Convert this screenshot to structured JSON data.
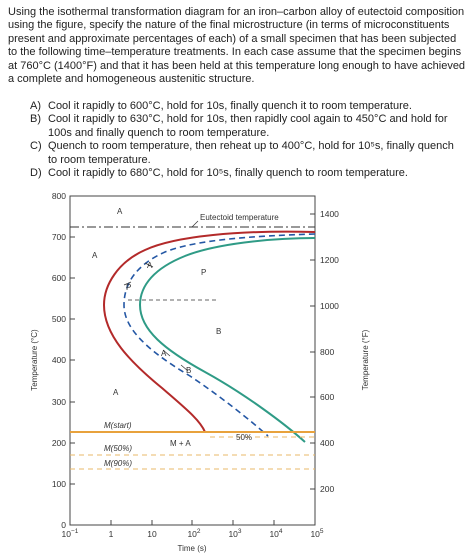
{
  "question": {
    "intro": "Using the isothermal transformation diagram for an iron–carbon alloy of eutectoid composition using the figure, specify the nature of the final microstructure (in terms of microconstituents present and approximate percentages of each) of a small specimen that has been subjected to the following time–temperature treatments. In each case assume that the specimen begins at 760°C (1400°F) and that it has been held at this temperature long enough to have achieved a complete and homogeneous austenitic structure.",
    "options": [
      {
        "letter": "A)",
        "text": "Cool it rapidly to 600°C, hold for 10s, finally quench it to room temperature."
      },
      {
        "letter": "B)",
        "text": "Cool it rapidly to 630°C, hold for 10s, then rapidly cool again to 450°C and hold for 100s and finally quench to room temperature."
      },
      {
        "letter": "C)",
        "text": "Quench to room temperature, then reheat up to 400°C, hold for 10⁵s, finally quench to room temperature."
      },
      {
        "letter": "D)",
        "text": "Cool it rapidly to 680°C, hold for 10⁵s, finally quench to room temperature."
      }
    ]
  },
  "diagram": {
    "left_axis": {
      "title": "Temperature (°C)",
      "ticks": [
        "0",
        "100",
        "200",
        "300",
        "400",
        "500",
        "600",
        "700",
        "800"
      ]
    },
    "right_axis": {
      "title": "Temperature (°F)",
      "ticks": [
        "200",
        "400",
        "600",
        "800",
        "1000",
        "1200",
        "1400"
      ]
    },
    "x_axis": {
      "title": "Time (s)",
      "ticks": [
        "10",
        "1",
        "10",
        "10",
        "10",
        "10",
        "10"
      ],
      "exponents": [
        "−1",
        "",
        "",
        "2",
        "3",
        "4",
        "5"
      ]
    },
    "eutectoid_label": "Eutectoid temperature",
    "region_labels": {
      "a_top": "A",
      "a_left": "A",
      "a_low": "A",
      "p_region": "P",
      "b_region": "B",
      "m_plus_a": "M + A",
      "fifty_pct": "50%",
      "curve_a": "A",
      "curve_p": "P",
      "curve_a2": "A",
      "curve_b": "B"
    },
    "martensite_labels": [
      "M(start)",
      "M(50%)",
      "M(90%)"
    ],
    "colors": {
      "start_curve": "#b32a2a",
      "finish_curve": "#2f9b86",
      "dashed_50": "#2457a4",
      "ms_line": "#e8a23c",
      "m_dash": "#e8b86a"
    }
  }
}
